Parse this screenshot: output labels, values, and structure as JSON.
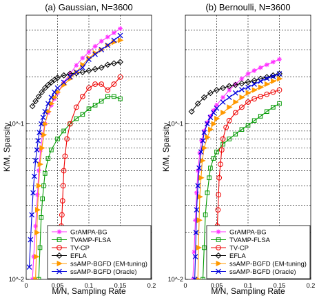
{
  "chart_data": [
    {
      "type": "line",
      "title": "(a) Gaussian, N=3600",
      "xlabel": "M/N, Sampling Rate",
      "ylabel": "K/M, Sparsity",
      "xlim": [
        0,
        0.2
      ],
      "ylim": [
        0.01,
        0.5
      ],
      "yscale": "log",
      "xticks": [
        "0",
        "0.05",
        "0.1",
        "0.15",
        "0.2"
      ],
      "yticks": [
        "10^-2",
        "10^-1"
      ],
      "grid": true,
      "legend_position": "bottom-right",
      "series": [
        {
          "name": "GrAMPA-BG",
          "color": "#ff33ff",
          "marker": "star",
          "x": [
            0.01,
            0.012,
            0.015,
            0.018,
            0.02,
            0.023,
            0.026,
            0.03,
            0.035,
            0.04,
            0.045,
            0.05,
            0.06,
            0.07,
            0.08,
            0.09,
            0.1,
            0.11,
            0.12,
            0.13,
            0.14,
            0.15
          ],
          "y": [
            0.01,
            0.014,
            0.022,
            0.035,
            0.05,
            0.068,
            0.085,
            0.1,
            0.118,
            0.132,
            0.145,
            0.158,
            0.185,
            0.21,
            0.238,
            0.265,
            0.29,
            0.315,
            0.34,
            0.362,
            0.385,
            0.41
          ]
        },
        {
          "name": "TVAMP-FLSA",
          "color": "#009900",
          "marker": "square",
          "x": [
            0.02,
            0.022,
            0.024,
            0.026,
            0.028,
            0.03,
            0.035,
            0.04,
            0.05,
            0.06,
            0.07,
            0.08,
            0.09,
            0.1,
            0.11,
            0.12,
            0.13,
            0.14,
            0.15
          ],
          "y": [
            0.01,
            0.016,
            0.025,
            0.033,
            0.04,
            0.048,
            0.06,
            0.068,
            0.08,
            0.09,
            0.1,
            0.108,
            0.115,
            0.125,
            0.132,
            0.14,
            0.15,
            0.15,
            0.145
          ]
        },
        {
          "name": "TV-CP",
          "color": "#ee0000",
          "marker": "circle",
          "x": [
            0.055,
            0.055,
            0.055,
            0.056,
            0.056,
            0.057,
            0.058,
            0.059,
            0.06,
            0.062,
            0.065,
            0.07,
            0.08,
            0.09,
            0.1,
            0.11,
            0.12,
            0.13,
            0.14,
            0.15
          ],
          "y": [
            0.01,
            0.012,
            0.014,
            0.018,
            0.022,
            0.026,
            0.032,
            0.04,
            0.05,
            0.062,
            0.08,
            0.1,
            0.128,
            0.15,
            0.17,
            0.18,
            0.18,
            0.165,
            0.18,
            0.2
          ]
        },
        {
          "name": "EFLA",
          "color": "#000000",
          "marker": "diamond",
          "x": [
            0.01,
            0.015,
            0.02,
            0.025,
            0.03,
            0.035,
            0.04,
            0.045,
            0.05,
            0.06,
            0.07,
            0.08,
            0.09,
            0.1,
            0.11,
            0.12,
            0.13,
            0.14,
            0.15
          ],
          "y": [
            0.13,
            0.14,
            0.15,
            0.16,
            0.17,
            0.178,
            0.185,
            0.192,
            0.198,
            0.205,
            0.21,
            0.212,
            0.215,
            0.22,
            0.225,
            0.23,
            0.24,
            0.245,
            0.25
          ]
        },
        {
          "name": "ssAMP-BGFD (EM-tuning)",
          "color": "#ff9900",
          "marker": "triangle-right",
          "x": [
            0.015,
            0.016,
            0.017,
            0.018,
            0.02,
            0.022,
            0.025,
            0.028,
            0.03,
            0.035,
            0.04,
            0.045,
            0.05,
            0.06,
            0.07,
            0.08,
            0.09,
            0.1,
            0.11,
            0.12,
            0.13,
            0.14,
            0.15
          ],
          "y": [
            0.01,
            0.014,
            0.02,
            0.028,
            0.04,
            0.055,
            0.07,
            0.085,
            0.1,
            0.12,
            0.135,
            0.148,
            0.16,
            0.178,
            0.195,
            0.215,
            0.24,
            0.265,
            0.285,
            0.3,
            0.32,
            0.335,
            0.345
          ]
        },
        {
          "name": "ssAMP-BGFD (Oracle)",
          "color": "#0000dd",
          "marker": "x",
          "x": [
            0.005,
            0.007,
            0.009,
            0.011,
            0.013,
            0.015,
            0.017,
            0.019,
            0.021,
            0.024,
            0.027,
            0.03,
            0.035,
            0.04,
            0.045,
            0.05,
            0.06,
            0.07,
            0.08,
            0.09,
            0.1,
            0.11,
            0.12,
            0.13,
            0.14,
            0.15
          ],
          "y": [
            0.012,
            0.018,
            0.026,
            0.036,
            0.046,
            0.058,
            0.068,
            0.078,
            0.088,
            0.1,
            0.11,
            0.12,
            0.135,
            0.148,
            0.16,
            0.17,
            0.185,
            0.2,
            0.215,
            0.23,
            0.26,
            0.28,
            0.3,
            0.32,
            0.345,
            0.37
          ]
        }
      ]
    },
    {
      "type": "line",
      "title": "(b) Bernoulli, N=3600",
      "xlabel": "M/N, Sampling Rate",
      "ylabel": "K/M, Sparsity",
      "xlim": [
        0,
        0.2
      ],
      "ylim": [
        0.01,
        0.5
      ],
      "yscale": "log",
      "xticks": [
        "0",
        "0.05",
        "0.1",
        "0.15",
        "0.2"
      ],
      "yticks": [
        "10^-2",
        "10^-1"
      ],
      "grid": true,
      "legend_position": "bottom-right",
      "series": [
        {
          "name": "GrAMPA-BG",
          "color": "#ff33ff",
          "marker": "star",
          "x": [
            0.012,
            0.014,
            0.016,
            0.018,
            0.02,
            0.023,
            0.026,
            0.03,
            0.035,
            0.04,
            0.045,
            0.05,
            0.06,
            0.07,
            0.08,
            0.09,
            0.1,
            0.11,
            0.12,
            0.13,
            0.14,
            0.15
          ],
          "y": [
            0.01,
            0.015,
            0.024,
            0.036,
            0.05,
            0.065,
            0.078,
            0.09,
            0.102,
            0.112,
            0.122,
            0.132,
            0.148,
            0.165,
            0.18,
            0.195,
            0.21,
            0.22,
            0.23,
            0.24,
            0.25,
            0.26
          ]
        },
        {
          "name": "TVAMP-FLSA",
          "color": "#009900",
          "marker": "square",
          "x": [
            0.028,
            0.03,
            0.032,
            0.035,
            0.038,
            0.04,
            0.045,
            0.05,
            0.06,
            0.07,
            0.08,
            0.09,
            0.1,
            0.11,
            0.12,
            0.13,
            0.14,
            0.15
          ],
          "y": [
            0.01,
            0.016,
            0.026,
            0.036,
            0.045,
            0.052,
            0.06,
            0.066,
            0.074,
            0.08,
            0.086,
            0.092,
            0.098,
            0.105,
            0.112,
            0.12,
            0.128,
            0.135
          ]
        },
        {
          "name": "TV-CP",
          "color": "#ee0000",
          "marker": "circle",
          "x": [
            0.05,
            0.05,
            0.05,
            0.051,
            0.051,
            0.052,
            0.053,
            0.054,
            0.056,
            0.058,
            0.06,
            0.065,
            0.07,
            0.08,
            0.09,
            0.1,
            0.11,
            0.12,
            0.13,
            0.14,
            0.15
          ],
          "y": [
            0.01,
            0.012,
            0.014,
            0.018,
            0.022,
            0.028,
            0.035,
            0.045,
            0.055,
            0.068,
            0.08,
            0.095,
            0.105,
            0.118,
            0.128,
            0.138,
            0.145,
            0.15,
            0.155,
            0.16,
            0.165
          ]
        },
        {
          "name": "EFLA",
          "color": "#000000",
          "marker": "diamond",
          "x": [
            0.01,
            0.02,
            0.03,
            0.04,
            0.05,
            0.06,
            0.07,
            0.08,
            0.09,
            0.1,
            0.11,
            0.12,
            0.13,
            0.14,
            0.15
          ],
          "y": [
            0.12,
            0.135,
            0.148,
            0.158,
            0.165,
            0.17,
            0.175,
            0.178,
            0.182,
            0.186,
            0.19,
            0.195,
            0.2,
            0.205,
            0.21
          ]
        },
        {
          "name": "ssAMP-BGFD (EM-tuning)",
          "color": "#ff9900",
          "marker": "triangle-right",
          "x": [
            0.02,
            0.021,
            0.022,
            0.023,
            0.025,
            0.027,
            0.03,
            0.035,
            0.04,
            0.045,
            0.05,
            0.06,
            0.07,
            0.08,
            0.09,
            0.1,
            0.11,
            0.12,
            0.13,
            0.14,
            0.15
          ],
          "y": [
            0.01,
            0.016,
            0.024,
            0.034,
            0.045,
            0.058,
            0.07,
            0.082,
            0.092,
            0.1,
            0.108,
            0.118,
            0.128,
            0.138,
            0.148,
            0.158,
            0.165,
            0.172,
            0.18,
            0.188,
            0.195
          ]
        },
        {
          "name": "ssAMP-BGFD (Oracle)",
          "color": "#0000dd",
          "marker": "x",
          "x": [
            0.015,
            0.016,
            0.017,
            0.018,
            0.02,
            0.022,
            0.025,
            0.028,
            0.03,
            0.035,
            0.04,
            0.045,
            0.05,
            0.06,
            0.07,
            0.08,
            0.09,
            0.1,
            0.11,
            0.12,
            0.13,
            0.14,
            0.15
          ],
          "y": [
            0.01,
            0.014,
            0.02,
            0.028,
            0.04,
            0.052,
            0.066,
            0.078,
            0.088,
            0.1,
            0.11,
            0.118,
            0.126,
            0.138,
            0.148,
            0.158,
            0.166,
            0.172,
            0.18,
            0.188,
            0.196,
            0.202,
            0.21
          ]
        }
      ]
    }
  ]
}
